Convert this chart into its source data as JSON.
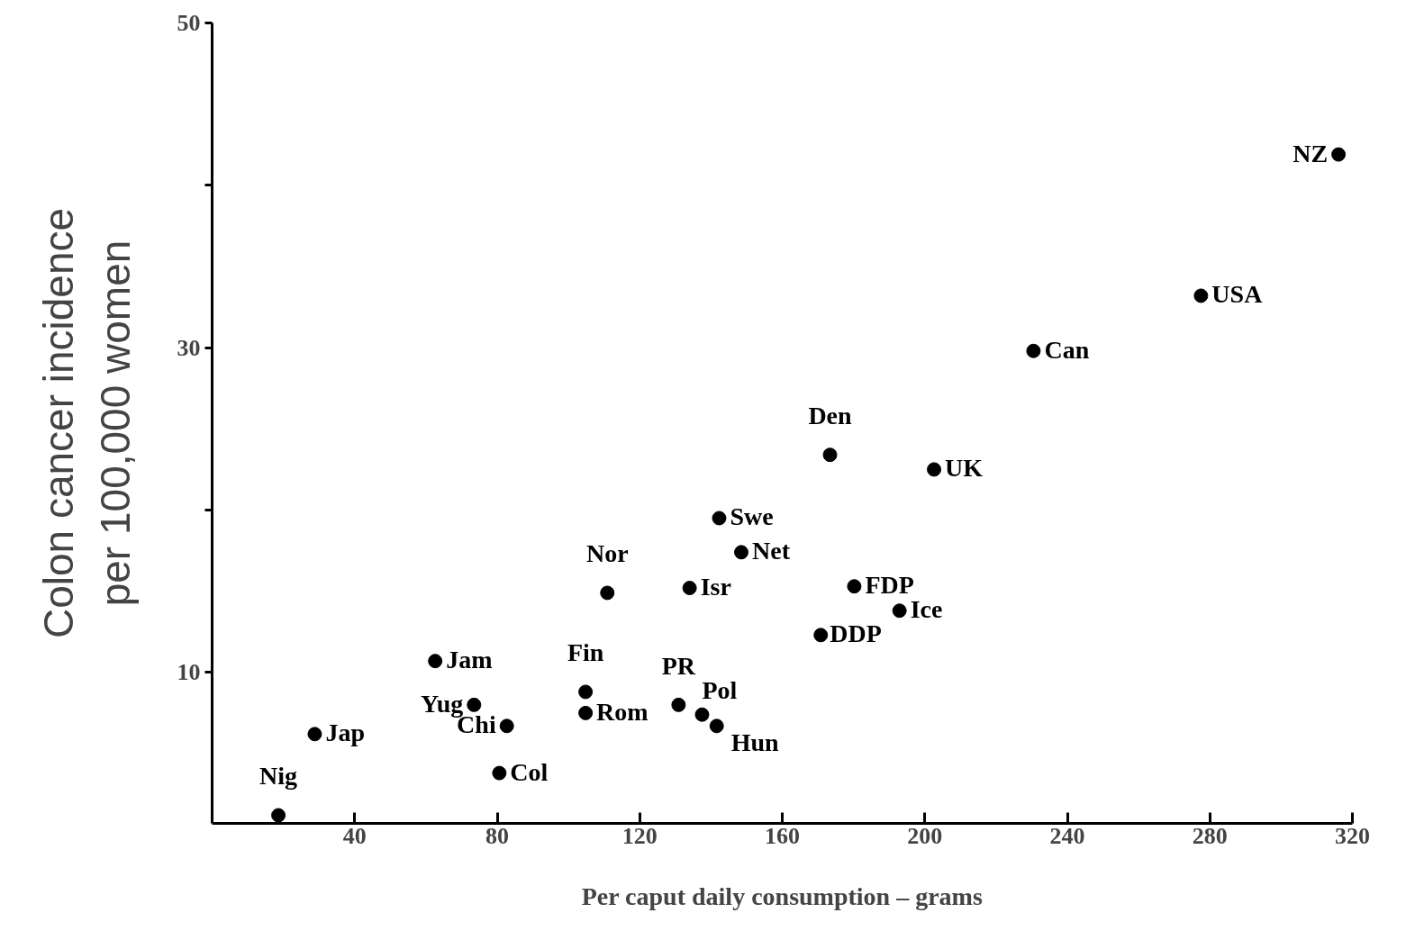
{
  "chart_data": {
    "type": "scatter",
    "xlabel": "Per caput daily consumption – grams",
    "ylabel": "Colon cancer incidence\nper 100,000 women",
    "x": [
      18.6,
      28.8,
      62.6,
      73.5,
      82.7,
      80.6,
      104.8,
      104.8,
      110.9,
      130.9,
      137.5,
      141.6,
      134.0,
      142.3,
      148.5,
      173.4,
      202.6,
      180.2,
      192.9,
      170.8,
      230.5,
      277.5,
      316.1
    ],
    "values": [
      1.2,
      6.2,
      10.7,
      8.0,
      6.7,
      3.8,
      8.8,
      7.5,
      14.9,
      8.0,
      7.4,
      6.7,
      15.2,
      19.5,
      17.4,
      23.4,
      22.5,
      15.3,
      13.8,
      12.3,
      29.8,
      33.2,
      41.9
    ],
    "value_labels": [
      "Nig",
      "Jap",
      "Jam",
      "Yug",
      "Chi",
      "Col",
      "Fin",
      "Rom",
      "Nor",
      "PR",
      "Pol",
      "Hun",
      "Isr",
      "Swe",
      "Net",
      "Den",
      "UK",
      "FDP",
      "Ice",
      "DDP",
      "Can",
      "USA",
      "NZ"
    ],
    "color": "#000000",
    "marker": "circle",
    "xlim": [
      0,
      320
    ],
    "xticks": [
      40,
      80,
      120,
      160,
      200,
      240,
      280,
      320
    ],
    "ylim": [
      0.7,
      50
    ],
    "yticks": [
      10,
      {
        "value": 20,
        "label": null
      },
      30,
      {
        "value": 40,
        "label": null
      },
      50
    ],
    "grid": false,
    "tick_labels": true
  }
}
